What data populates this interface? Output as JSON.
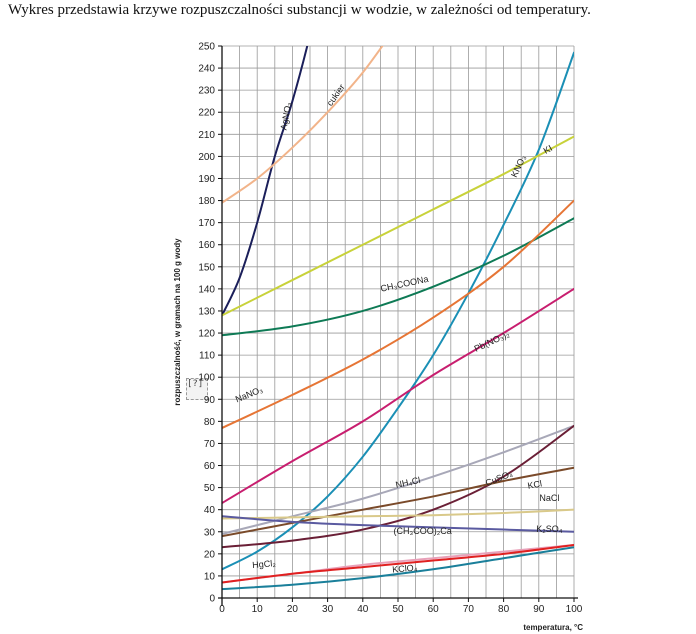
{
  "caption": "Wykres przedstawia krzywe rozpuszczalności substancji w wodzie, w zależności od temperatury.",
  "broken_glyph": "[?]",
  "chart_data": {
    "type": "line",
    "title": "",
    "xlabel": "temperatura, °C",
    "ylabel": "rozpuszczalność, w gramach na 100 g wody",
    "xlim": [
      0,
      100
    ],
    "ylim": [
      0,
      250
    ],
    "x_ticks": [
      0,
      10,
      20,
      30,
      40,
      50,
      60,
      70,
      80,
      90,
      100
    ],
    "y_ticks": [
      0,
      10,
      20,
      30,
      40,
      50,
      60,
      70,
      80,
      90,
      100,
      110,
      120,
      130,
      140,
      150,
      160,
      170,
      180,
      190,
      200,
      210,
      220,
      230,
      240,
      250
    ],
    "grid": true,
    "series": [
      {
        "name": "AgNO3",
        "label": "AgNO₃",
        "color": "#1b1f5a",
        "x": [
          0,
          5,
          10,
          15,
          20,
          25,
          30
        ],
        "y": [
          128,
          145,
          170,
          200,
          225,
          255,
          290
        ],
        "label_at": [
          19,
          218
        ],
        "label_rot": -80
      },
      {
        "name": "cukier",
        "label": "cukier",
        "color": "#f2b48a",
        "x": [
          0,
          10,
          20,
          30,
          40,
          50
        ],
        "y": [
          179,
          190,
          204,
          220,
          238,
          260
        ],
        "label_at": [
          33,
          227
        ],
        "label_rot": -55
      },
      {
        "name": "KNO3",
        "label": "KNO₃",
        "color": "#1a8fb5",
        "x": [
          0,
          10,
          20,
          30,
          40,
          50,
          60,
          70,
          80,
          90,
          100
        ],
        "y": [
          13,
          21,
          32,
          46,
          64,
          86,
          110,
          138,
          169,
          203,
          247
        ],
        "label_at": [
          85,
          195
        ],
        "label_rot": -65
      },
      {
        "name": "KI",
        "label": "KI",
        "color": "#c8d23a",
        "x": [
          0,
          20,
          40,
          60,
          80,
          100
        ],
        "y": [
          128,
          144,
          160,
          176,
          192,
          209
        ],
        "label_at": [
          93,
          202
        ],
        "label_rot": -30
      },
      {
        "name": "CH3COONa",
        "label": "CH₃COONa",
        "color": "#0e7a55",
        "x": [
          0,
          20,
          40,
          60,
          80,
          100
        ],
        "y": [
          119,
          123,
          130,
          141,
          155,
          172
        ],
        "label_at": [
          52,
          141
        ],
        "label_rot": -12
      },
      {
        "name": "NaNO3",
        "label": "NaNO₃",
        "color": "#e67535",
        "x": [
          0,
          20,
          40,
          60,
          80,
          100
        ],
        "y": [
          77,
          92,
          108,
          127,
          150,
          180
        ],
        "label_at": [
          8,
          91
        ],
        "label_rot": -22
      },
      {
        "name": "Pb(NO3)2",
        "label": "Pb(NO₃)₂",
        "color": "#c81e6f",
        "x": [
          0,
          20,
          40,
          60,
          80,
          100
        ],
        "y": [
          43,
          62,
          80,
          101,
          120,
          140
        ],
        "label_at": [
          77,
          115
        ],
        "label_rot": -25
      },
      {
        "name": "NH4Cl",
        "label": "NH₄Cl",
        "color": "#a8a8b8",
        "x": [
          0,
          20,
          40,
          60,
          80,
          100
        ],
        "y": [
          29,
          37,
          45,
          55,
          66,
          78
        ],
        "label_at": [
          53,
          51
        ],
        "label_rot": -12
      },
      {
        "name": "CuSO4",
        "label": "CuSO₄",
        "color": "#6a1f36",
        "x": [
          0,
          20,
          40,
          60,
          80,
          100
        ],
        "y": [
          23,
          26,
          31,
          40,
          55,
          78
        ],
        "label_at": [
          79,
          53
        ],
        "label_rot": -22
      },
      {
        "name": "KCl",
        "label": "KCl",
        "color": "#7a4a2a",
        "x": [
          0,
          20,
          40,
          60,
          80,
          100
        ],
        "y": [
          28,
          34,
          40,
          46,
          53,
          59
        ],
        "label_at": [
          89,
          50
        ],
        "label_rot": -10
      },
      {
        "name": "NaCl",
        "label": "NaCl",
        "color": "#d9c98a",
        "x": [
          0,
          20,
          40,
          60,
          80,
          100
        ],
        "y": [
          36,
          36.5,
          37,
          37.5,
          38.5,
          40
        ],
        "label_at": [
          93,
          44
        ],
        "label_rot": 0
      },
      {
        "name": "(CH3COO)2Ca",
        "label": "(CH₃COO)₂Ca",
        "color": "#5a5aa0",
        "x": [
          0,
          20,
          40,
          60,
          80,
          100
        ],
        "y": [
          37,
          34.5,
          33,
          32,
          31,
          30
        ],
        "label_at": [
          57,
          29
        ],
        "label_rot": 0
      },
      {
        "name": "K2SO4",
        "label": "K₂SO₄",
        "color": "#e8a0b8",
        "x": [
          0,
          20,
          40,
          60,
          80,
          100
        ],
        "y": [
          7,
          11,
          15,
          18,
          21,
          24
        ],
        "label_at": [
          93,
          30
        ],
        "label_rot": 0
      },
      {
        "name": "HgCl2",
        "label": "HgCl₂",
        "color": "#e02020",
        "x": [
          0,
          20,
          40,
          60,
          80,
          100
        ],
        "y": [
          7,
          11,
          14,
          17,
          20,
          24
        ],
        "label_at": [
          12,
          14
        ],
        "label_rot": -5
      },
      {
        "name": "KClO4",
        "label": "KClO₄",
        "color": "#1a7f9a",
        "x": [
          0,
          20,
          40,
          60,
          80,
          100
        ],
        "y": [
          4,
          6,
          9,
          13,
          18,
          23
        ],
        "label_at": [
          52,
          12
        ],
        "label_rot": -5
      }
    ]
  }
}
